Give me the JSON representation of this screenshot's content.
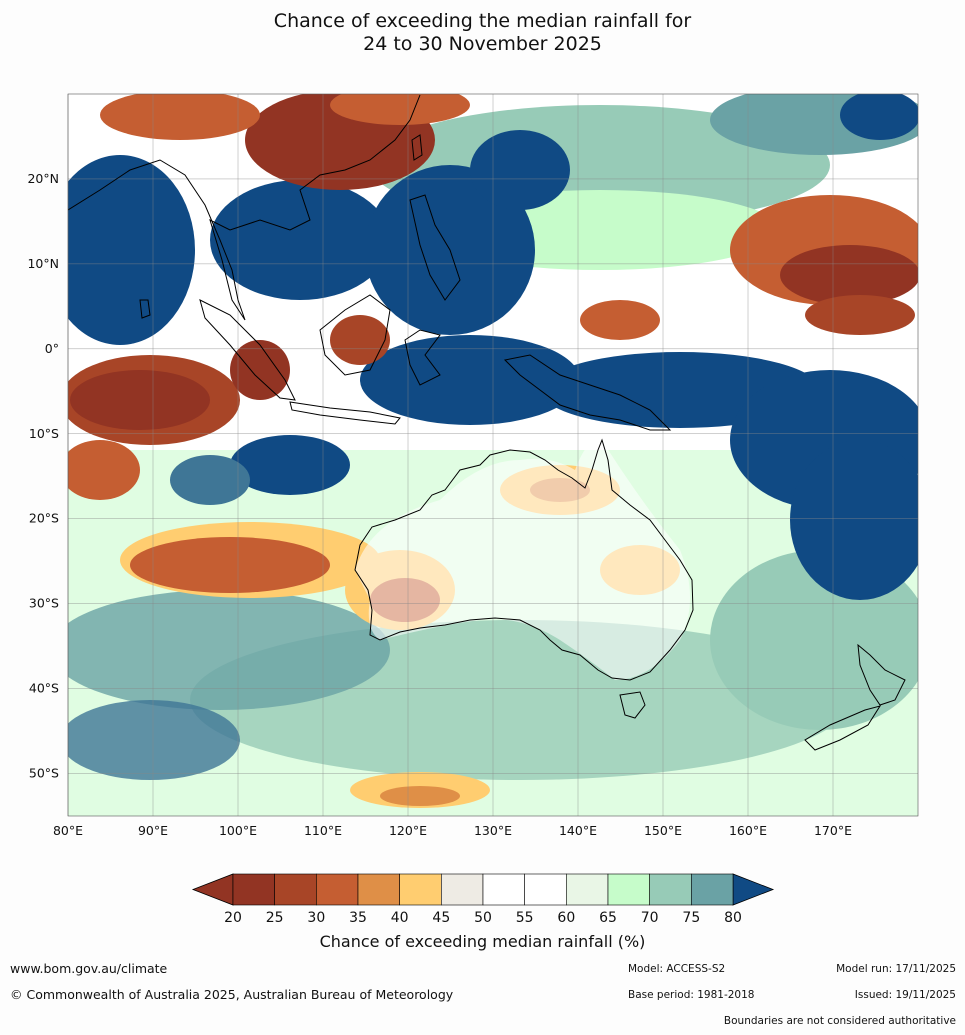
{
  "title": {
    "line1": "Chance of exceeding the median rainfall for",
    "line2": "24 to 30 November 2025"
  },
  "map": {
    "lat_labels": [
      "20°N",
      "10°N",
      "0°",
      "10°S",
      "20°S",
      "30°S",
      "40°S",
      "50°S"
    ],
    "lon_labels": [
      "80°E",
      "90°E",
      "100°E",
      "110°E",
      "120°E",
      "130°E",
      "140°E",
      "150°E",
      "160°E",
      "170°E"
    ],
    "lat_values": [
      20,
      10,
      0,
      -10,
      -20,
      -30,
      -40,
      -50
    ],
    "lon_values": [
      80,
      90,
      100,
      110,
      120,
      130,
      140,
      150,
      160,
      170
    ],
    "lon_range": [
      80,
      180
    ],
    "lat_range": [
      -55,
      30
    ]
  },
  "colorbar": {
    "ticks": [
      "20",
      "25",
      "30",
      "35",
      "40",
      "45",
      "50",
      "55",
      "60",
      "65",
      "70",
      "75",
      "80"
    ],
    "colors": [
      "#923423",
      "#a84527",
      "#c55e32",
      "#df8f47",
      "#ffcd70",
      "#eeebe4",
      "#ffffff",
      "#ffffff",
      "#e9f6e6",
      "#c6fcca",
      "#97cbb7",
      "#6aa2a5",
      "#3f7696"
    ],
    "under_color": "#923423",
    "over_color": "#104a84",
    "title": "Chance of exceeding median rainfall (%)"
  },
  "footer": {
    "website": "www.bom.gov.au/climate",
    "copyright": "© Commonwealth of Australia 2025, Australian Bureau of Meteorology",
    "model": "Model: ACCESS-S2",
    "base_period": "Base period: 1981-2018",
    "model_run": "Model run: 17/11/2025",
    "issued": "Issued: 19/11/2025",
    "disclaimer": "Boundaries are not considered authoritative"
  }
}
